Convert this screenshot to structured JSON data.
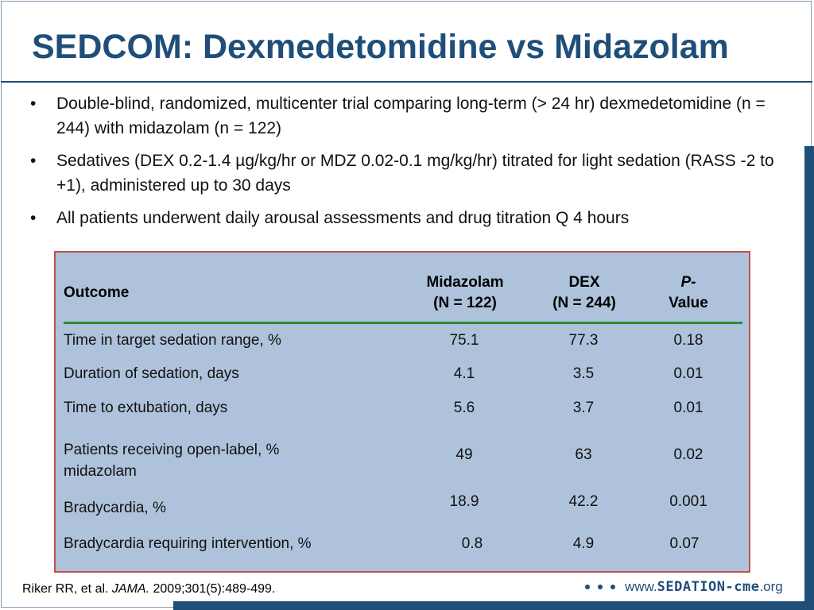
{
  "slide": {
    "title": "SEDCOM: Dexmedetomidine vs Midazolam",
    "bullets": [
      "Double-blind, randomized, multicenter trial comparing long-term (> 24 hr) dexmedetomidine (n = 244) with midazolam (n = 122)",
      "Sedatives (DEX 0.2-1.4 µg/kg/hr or MDZ 0.02-0.1 mg/kg/hr) titrated for light sedation (RASS -2 to +1), administered up to 30 days",
      "All patients underwent daily arousal assessments and drug titration Q 4 hours"
    ],
    "bullet_marker": "•"
  },
  "table": {
    "headers": {
      "outcome": "Outcome",
      "midazolam_line1": "Midazolam",
      "midazolam_line2": "(N = 122)",
      "dex_line1": "DEX",
      "dex_line2": "(N = 244)",
      "p_line1": "P-",
      "p_line2": "Value"
    },
    "rows": [
      {
        "outcome": "Time in target sedation range, %",
        "midazolam": "75.1",
        "dex": "77.3",
        "p": "0.18"
      },
      {
        "outcome": "Duration of sedation, days",
        "midazolam": "4.1",
        "dex": "3.5",
        "p": "0.01"
      },
      {
        "outcome": "Time to extubation, days",
        "midazolam": "5.6",
        "dex": "3.7",
        "p": "0.01"
      },
      {
        "outcome_line1": "Patients receiving open-label, %",
        "outcome_line2": "midazolam",
        "midazolam": "49",
        "dex": "63",
        "p": "0.02"
      },
      {
        "outcome": "Bradycardia, %",
        "midazolam": "18.9",
        "dex": "42.2",
        "p": "0.001"
      },
      {
        "outcome": "Bradycardia requiring intervention, %",
        "midazolam": "0.8",
        "dex": "4.9",
        "p": "0.07"
      }
    ]
  },
  "citation": {
    "authors": "Riker RR, et al.",
    "journal": "JAMA.",
    "details": "2009;301(5):489-499."
  },
  "logo": {
    "www": "www.",
    "brand": "SEDATION-cme",
    "tld": ".org"
  },
  "colors": {
    "title_blue": "#1f4e79",
    "table_fill": "#aec3db",
    "table_border": "#c0504d",
    "header_rule": "#2e8b3a"
  }
}
